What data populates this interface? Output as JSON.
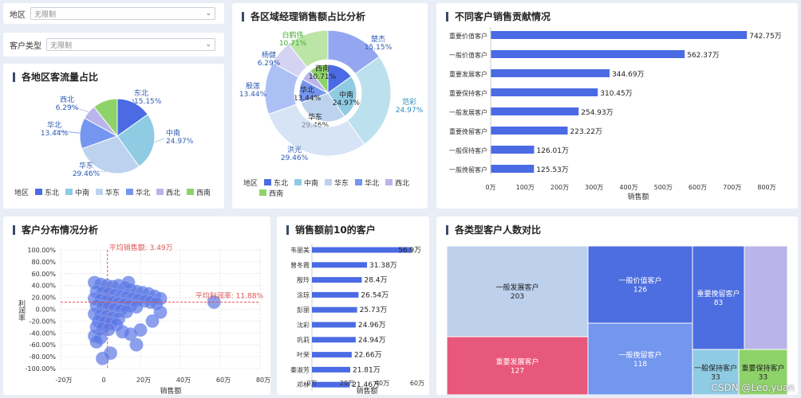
{
  "filters": [
    {
      "label": "地区",
      "value": "无限制"
    },
    {
      "label": "客户类型",
      "value": "无限制"
    }
  ],
  "panels": {
    "region_traffic": "各地区客流量占比",
    "manager_sales": "各区域经理销售额占比分析",
    "contribution": "不同客户销售贡献情况",
    "distribution": "客户分布情况分析",
    "top10": "销售额前10的客户",
    "type_count": "各类型客户人数对比"
  },
  "legend_prefix": "地区",
  "colors": {
    "东北": "#4b6be4",
    "中南": "#8fcbe3",
    "华东": "#bdd2ee",
    "华北": "#7596f0",
    "西北": "#b9b5ea",
    "西南": "#8ed36a"
  },
  "chart_data": [
    {
      "type": "pie",
      "title": "各地区客流量占比",
      "legend_title": "地区",
      "slices": [
        {
          "label": "东北",
          "value": 15.15,
          "text": "15.15%"
        },
        {
          "label": "中南",
          "value": 24.97,
          "text": "24.97%"
        },
        {
          "label": "华东",
          "value": 29.46,
          "text": "29.46%"
        },
        {
          "label": "华北",
          "value": 13.44,
          "text": "13.44%"
        },
        {
          "label": "西北",
          "value": 6.29,
          "text": "6.29%"
        },
        {
          "label": "西南",
          "value": 10.69,
          "text": ""
        }
      ]
    },
    {
      "type": "pie",
      "title": "各区域经理销售额占比分析",
      "legend_title": "地区",
      "inner": [
        {
          "label": "东北",
          "value": 15.15,
          "text": ""
        },
        {
          "label": "中南",
          "value": 24.97,
          "text": "24.97%"
        },
        {
          "label": "华东",
          "value": 29.46,
          "text": "29.46%"
        },
        {
          "label": "华北",
          "value": 13.44,
          "text": "13.44%"
        },
        {
          "label": "西北",
          "value": 6.29,
          "text": ""
        },
        {
          "label": "西南",
          "value": 10.71,
          "text": "10.71%"
        }
      ],
      "outer": [
        {
          "label": "楚杰",
          "value": 15.15,
          "text": "15.15%"
        },
        {
          "label": "范彩",
          "value": 24.97,
          "text": "24.97%"
        },
        {
          "label": "洪光",
          "value": 29.46,
          "text": "29.46%"
        },
        {
          "label": "殷莲",
          "value": 13.44,
          "text": "13.44%"
        },
        {
          "label": "杨健",
          "value": 6.29,
          "text": "6.29%"
        },
        {
          "label": "白鹤伟",
          "value": 10.71,
          "text": "10.71%"
        }
      ]
    },
    {
      "type": "bar",
      "title": "不同客户销售贡献情况",
      "xlabel": "销售额",
      "xlim": [
        0,
        800
      ],
      "xticks": [
        "0万",
        "100万",
        "200万",
        "300万",
        "400万",
        "500万",
        "600万",
        "700万",
        "800万"
      ],
      "categories": [
        "重要价值客户",
        "一般价值客户",
        "重要发展客户",
        "重要保持客户",
        "一般发展客户",
        "重要挽留客户",
        "一般保持客户",
        "一般挽留客户"
      ],
      "values": [
        742.75,
        562.37,
        344.69,
        310.45,
        254.93,
        223.22,
        126.01,
        125.53
      ],
      "labels": [
        "742.75万",
        "562.37万",
        "344.69万",
        "310.45万",
        "254.93万",
        "223.22万",
        "126.01万",
        "125.53万"
      ]
    },
    {
      "type": "scatter",
      "title": "客户分布情况分析",
      "xlabel": "销售额",
      "ylabel": "利润率",
      "xlim": [
        -20,
        80
      ],
      "ylim": [
        -100,
        100
      ],
      "xticks": [
        "-20万",
        "0",
        "20万",
        "40万",
        "60万",
        "80万"
      ],
      "yticks": [
        "100.00%",
        "80.00%",
        "60.00%",
        "40.00%",
        "20.00%",
        "0.00%",
        "-20.00%",
        "-40.00%",
        "-60.00%",
        "-80.00%",
        "-100.00%"
      ],
      "ref_x_label": "平均销售额: 3.49万",
      "ref_y_label": "平均利润率: 11.88%",
      "ref_x": 3.49,
      "ref_y": 11.88,
      "points": [
        [
          56.9,
          12
        ],
        [
          -3,
          45
        ],
        [
          0,
          42
        ],
        [
          3,
          40
        ],
        [
          6,
          38
        ],
        [
          9,
          40
        ],
        [
          12,
          36
        ],
        [
          15,
          32
        ],
        [
          18,
          30
        ],
        [
          21,
          28
        ],
        [
          24,
          26
        ],
        [
          27,
          22
        ],
        [
          30,
          18
        ],
        [
          14,
          45
        ],
        [
          -2,
          30
        ],
        [
          1,
          28
        ],
        [
          4,
          26
        ],
        [
          7,
          24
        ],
        [
          10,
          22
        ],
        [
          13,
          20
        ],
        [
          16,
          18
        ],
        [
          19,
          16
        ],
        [
          22,
          14
        ],
        [
          25,
          12
        ],
        [
          28,
          10
        ],
        [
          -3,
          18
        ],
        [
          0,
          16
        ],
        [
          3,
          14
        ],
        [
          6,
          12
        ],
        [
          9,
          10
        ],
        [
          12,
          8
        ],
        [
          15,
          6
        ],
        [
          18,
          4
        ],
        [
          -2,
          6
        ],
        [
          1,
          4
        ],
        [
          4,
          2
        ],
        [
          7,
          0
        ],
        [
          10,
          -2
        ],
        [
          13,
          -4
        ],
        [
          -3,
          -8
        ],
        [
          0,
          -10
        ],
        [
          3,
          -12
        ],
        [
          6,
          -14
        ],
        [
          9,
          -16
        ],
        [
          -1,
          -20
        ],
        [
          2,
          -22
        ],
        [
          5,
          -24
        ],
        [
          8,
          -26
        ],
        [
          -2,
          -30
        ],
        [
          1,
          -32
        ],
        [
          4,
          -34
        ],
        [
          11,
          -38
        ],
        [
          15,
          -42
        ],
        [
          -3,
          -45
        ],
        [
          0,
          -48
        ],
        [
          -2,
          -55
        ],
        [
          20,
          -35
        ],
        [
          26,
          -20
        ],
        [
          30,
          -5
        ],
        [
          18,
          -60
        ],
        [
          1,
          -83
        ],
        [
          5,
          -74
        ]
      ]
    },
    {
      "type": "bar",
      "title": "销售额前10的客户",
      "xlabel": "销售额",
      "xlim": [
        0,
        60
      ],
      "xticks": [
        "0万",
        "20万",
        "40万",
        "60万"
      ],
      "categories": [
        "韦丽美",
        "曾冬霞",
        "殷玲",
        "涂琼",
        "彭丽",
        "沈彩",
        "巩莉",
        "叶荣",
        "秦淑芳",
        "邓林"
      ],
      "values": [
        56.9,
        31.38,
        28.4,
        26.54,
        25.73,
        24.96,
        24.94,
        22.66,
        21.81,
        21.46
      ],
      "labels": [
        "56.9万",
        "31.38万",
        "28.4万",
        "26.54万",
        "25.73万",
        "24.96万",
        "24.94万",
        "22.66万",
        "21.81万",
        "21.46万"
      ]
    },
    {
      "type": "heatmap",
      "title": "各类型客户人数对比",
      "cells": [
        {
          "label": "一般发展客户",
          "value": "203",
          "color": "#bdd0ec"
        },
        {
          "label": "重要发展客户",
          "value": "127",
          "color": "#e8587a"
        },
        {
          "label": "一般价值客户",
          "value": "126",
          "color": "#4d6ee0"
        },
        {
          "label": "一般挽留客户",
          "value": "118",
          "color": "#7396ee"
        },
        {
          "label": "重要挽留客户",
          "value": "83",
          "color": "#4d6ee0"
        },
        {
          "label": "一般保持客户",
          "value": "33",
          "color": "#8fcbe3"
        },
        {
          "label": "重要保持客户",
          "value": "33",
          "color": "#8ed36a"
        },
        {
          "label": "",
          "value": "",
          "color": "#b9b5ea"
        }
      ]
    }
  ],
  "watermark": "CSDN @Leo.yuan"
}
